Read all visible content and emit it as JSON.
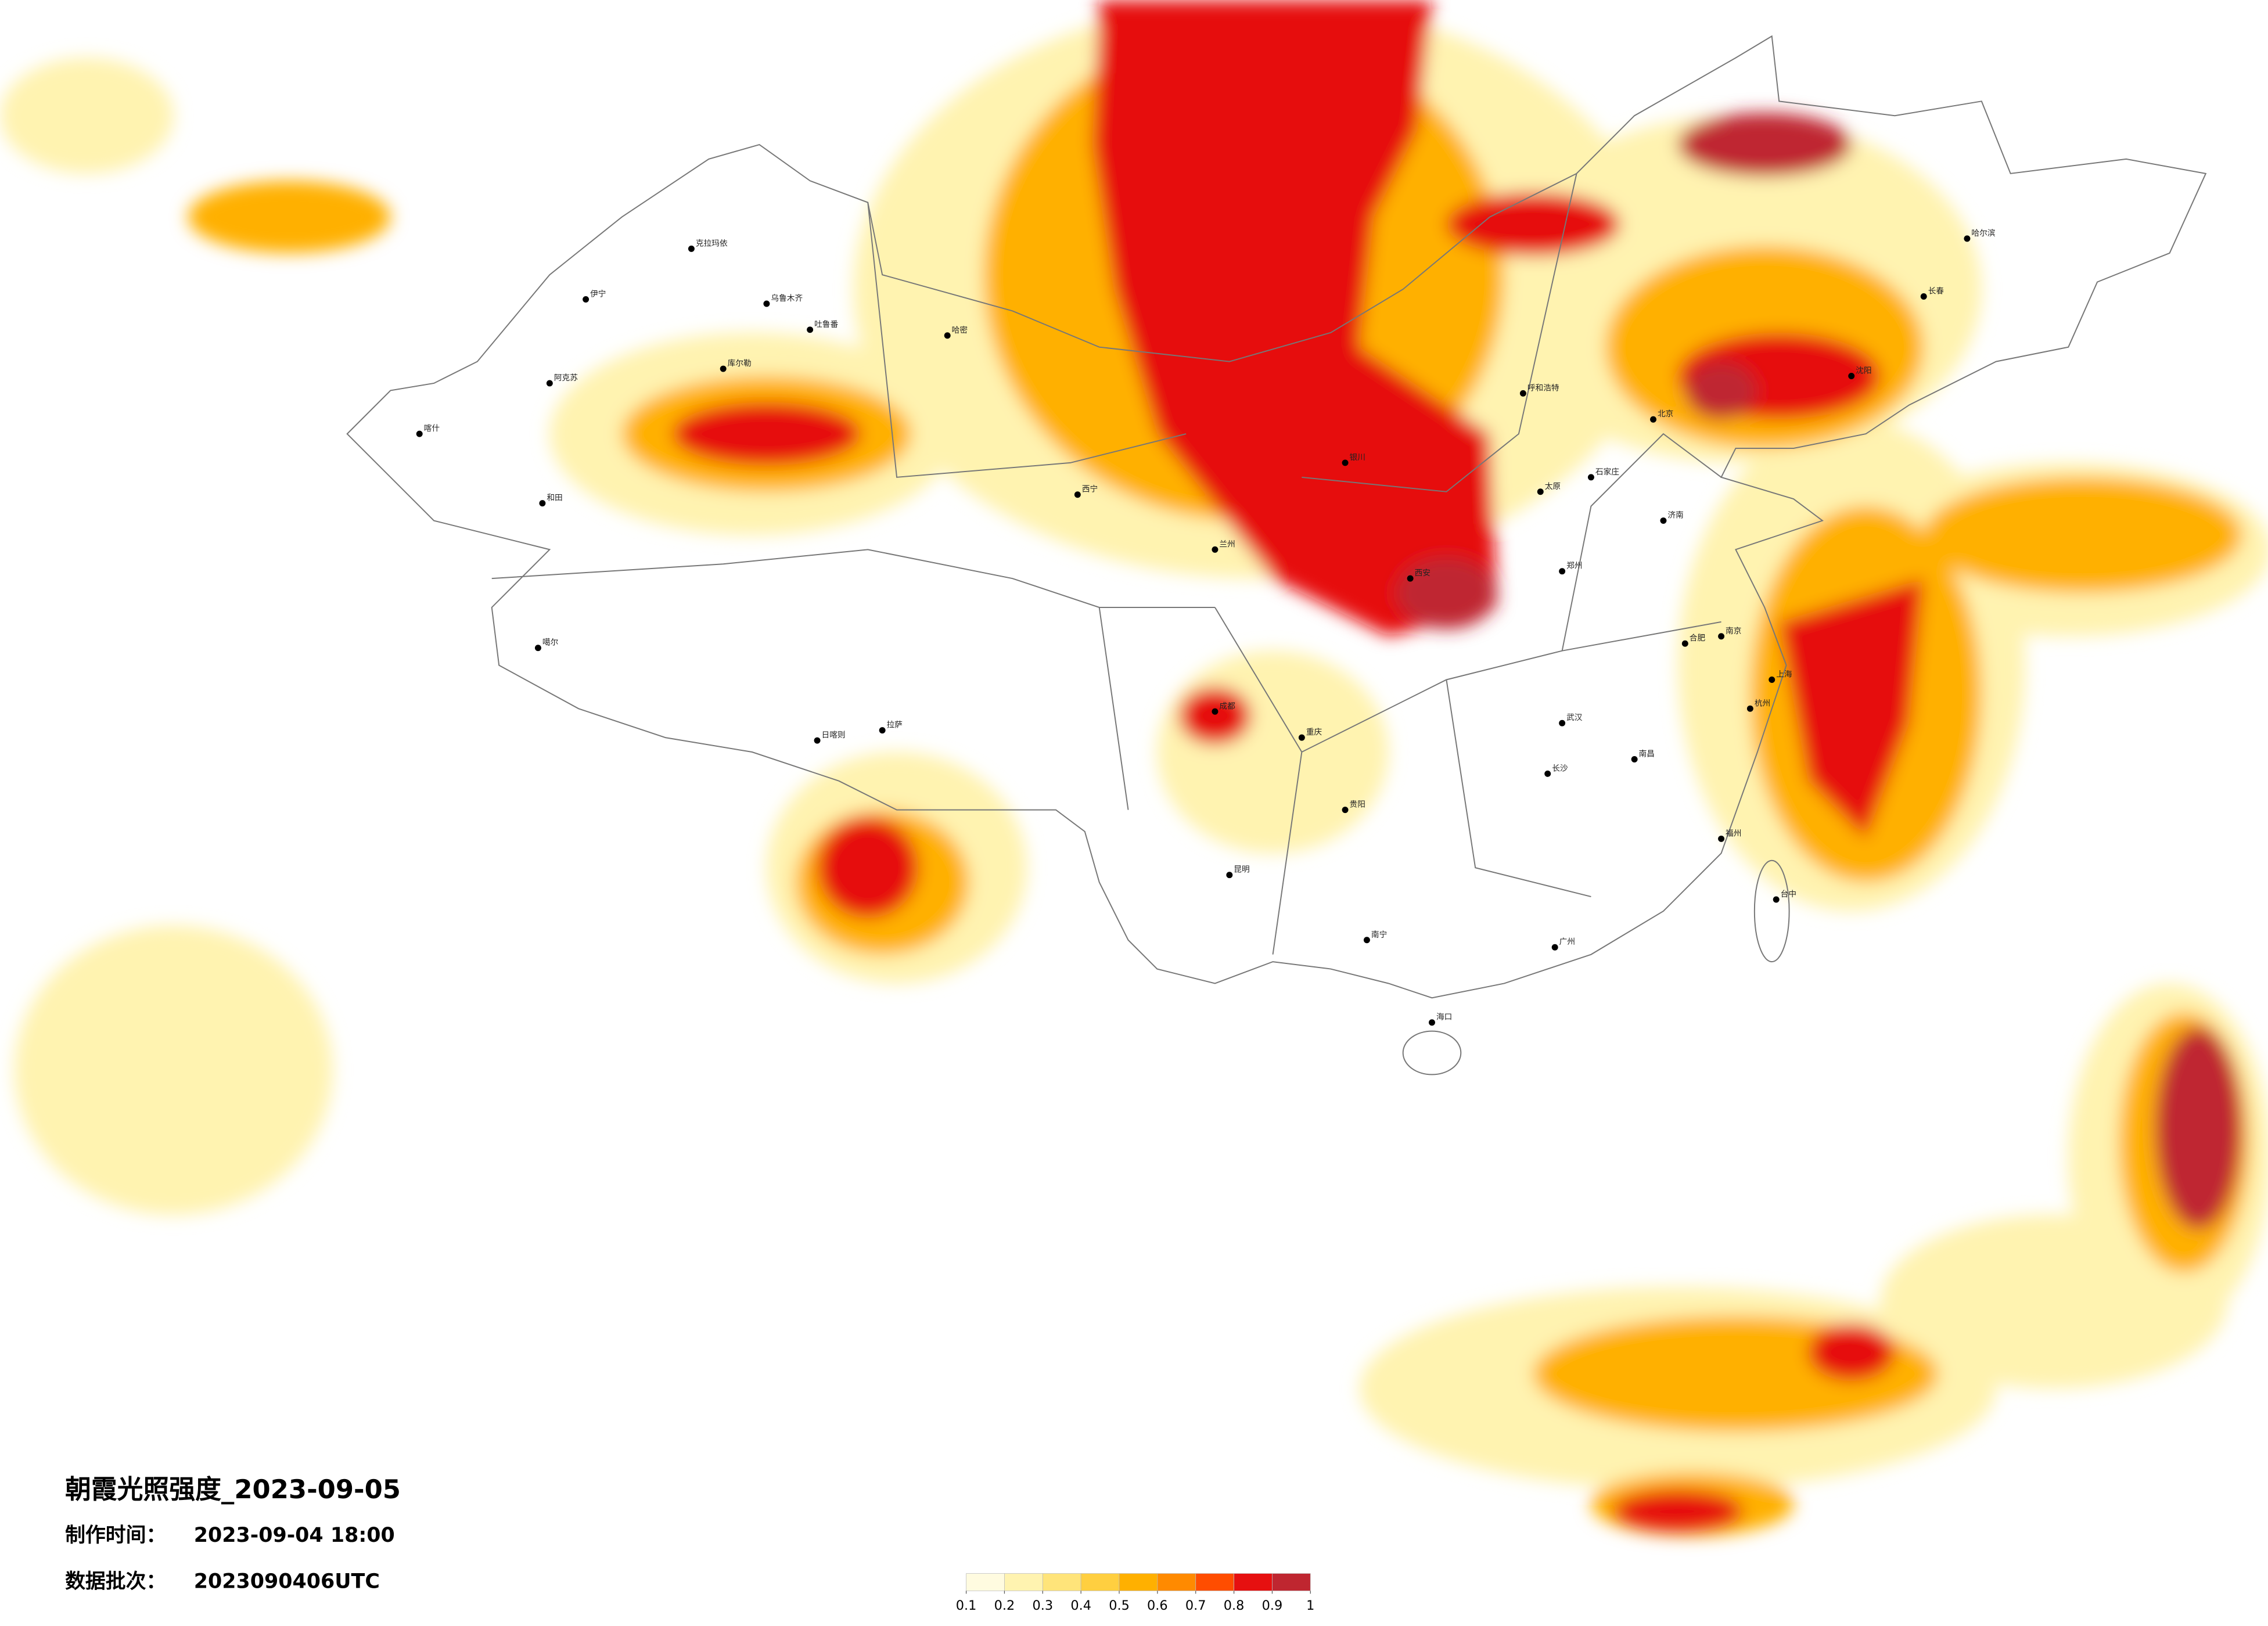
{
  "header": {
    "title": "朝霞光照强度_2023-09-05",
    "made_label": "制作时间：",
    "made_time": "2023-09-04 18:00",
    "batch_label": "数据批次：",
    "batch": "2023090406UTC"
  },
  "legend": {
    "ticks": [
      0.1,
      0.2,
      0.3,
      0.4,
      0.5,
      0.6,
      0.7,
      0.8,
      0.9,
      1
    ],
    "colors": [
      "#fffbe0",
      "#fff3b0",
      "#ffe47a",
      "#ffcf40",
      "#ffb000",
      "#ff8a00",
      "#ff4d00",
      "#e61010",
      "#bf2630"
    ]
  },
  "map": {
    "cities": [
      "克拉玛依",
      "伊宁",
      "乌鲁木齐",
      "吐鲁番",
      "库尔勒",
      "阿克苏",
      "喀什",
      "和田",
      "哈密",
      "噶尔",
      "日喀则",
      "拉萨",
      "西宁",
      "兰州",
      "银川",
      "呼和浩特",
      "北京",
      "石家庄",
      "太原",
      "济南",
      "郑州",
      "西安",
      "成都",
      "重庆",
      "贵阳",
      "昆明",
      "南宁",
      "广州",
      "海口",
      "武汉",
      "长沙",
      "南昌",
      "合肥",
      "南京",
      "上海",
      "杭州",
      "福州",
      "台中",
      "沈阳",
      "长春",
      "哈尔滨"
    ]
  }
}
